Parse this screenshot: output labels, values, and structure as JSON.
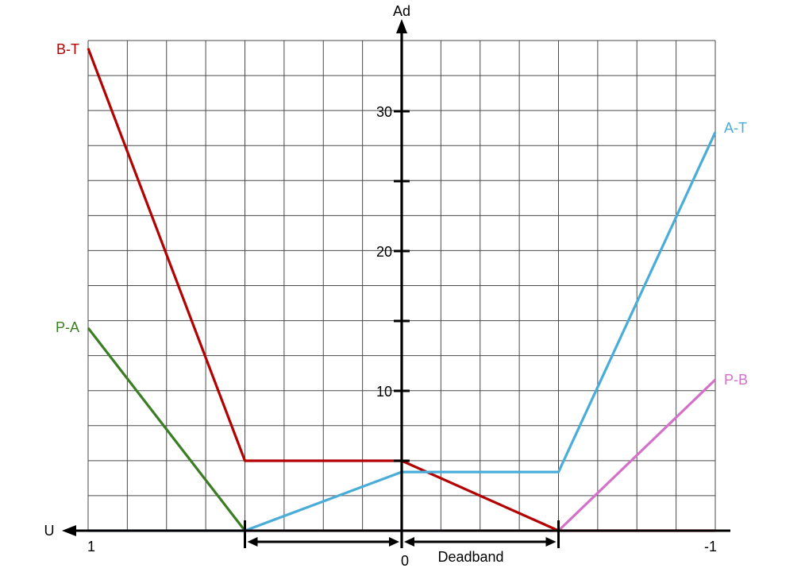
{
  "chart_data": {
    "type": "line",
    "ylabel": "Ad",
    "xlabel": "U",
    "xlim": [
      1,
      -1
    ],
    "ylim": [
      0,
      35
    ],
    "grid": true,
    "x_tick_labels": [
      {
        "x": 1,
        "label": "1"
      },
      {
        "x": 0,
        "label": "0"
      },
      {
        "x": -1,
        "label": "-1"
      }
    ],
    "y_ticks": [
      5,
      10,
      15,
      20,
      25,
      30
    ],
    "y_tick_labels": [
      {
        "y": 10,
        "label": "10"
      },
      {
        "y": 20,
        "label": "20"
      },
      {
        "y": 30,
        "label": "30"
      }
    ],
    "deadband": {
      "from": 0.5,
      "to": -0.5,
      "label": "Deadband"
    },
    "series": [
      {
        "name": "B-T",
        "color": "#b30000",
        "points": [
          [
            1,
            34.5
          ],
          [
            0.5,
            5
          ],
          [
            0,
            5
          ],
          [
            -0.5,
            0
          ],
          [
            -1,
            0
          ]
        ]
      },
      {
        "name": "P-A",
        "color": "#3a7d23",
        "points": [
          [
            1,
            14.5
          ],
          [
            0.5,
            0
          ]
        ]
      },
      {
        "name": "A-T",
        "color": "#4aacd8",
        "points": [
          [
            1,
            0
          ],
          [
            0.5,
            0
          ],
          [
            0,
            4.2
          ],
          [
            -0.5,
            4.2
          ],
          [
            -1,
            28.5
          ]
        ]
      },
      {
        "name": "P-B",
        "color": "#d371c8",
        "points": [
          [
            0.5,
            0
          ],
          [
            -0.5,
            0
          ],
          [
            -1,
            10.8
          ]
        ]
      }
    ]
  }
}
